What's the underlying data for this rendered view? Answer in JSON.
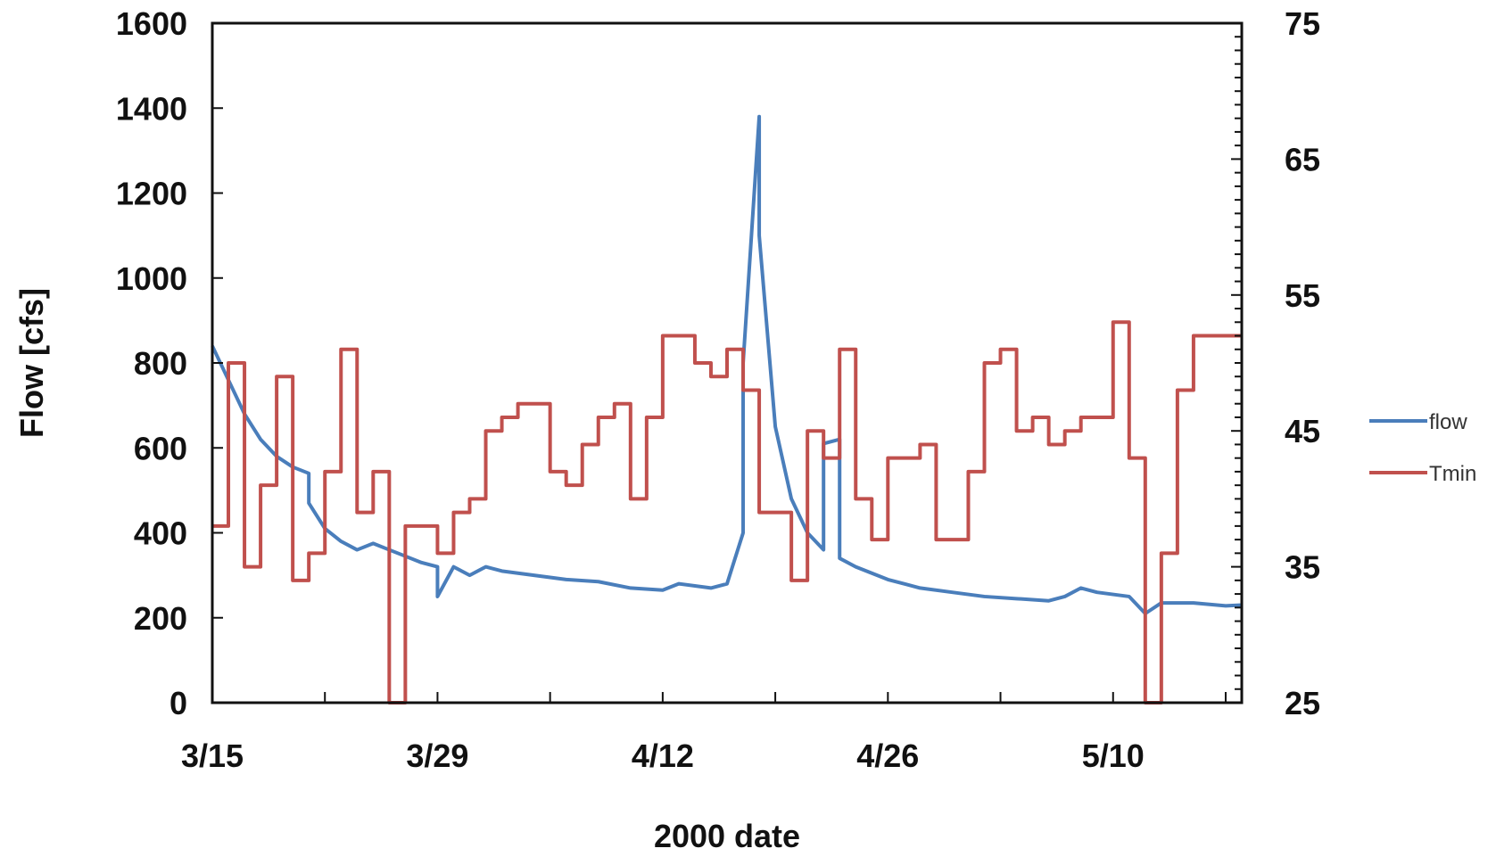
{
  "chart_data": {
    "type": "line",
    "title": "",
    "xlabel": "2000 date",
    "ylabel": "Flow  [cfs]",
    "y2label": "",
    "x_range": [
      "2000-03-15",
      "2000-05-18"
    ],
    "ylim": [
      0,
      1600
    ],
    "y2lim": [
      25,
      75
    ],
    "x_ticks": [
      {
        "date": "2000-03-15",
        "label": "3/15"
      },
      {
        "date": "2000-03-29",
        "label": "3/29"
      },
      {
        "date": "2000-04-12",
        "label": "4/12"
      },
      {
        "date": "2000-04-26",
        "label": "4/26"
      },
      {
        "date": "2000-05-10",
        "label": "5/10"
      }
    ],
    "y_ticks": [
      0,
      200,
      400,
      600,
      800,
      1000,
      1200,
      1400,
      1600
    ],
    "y2_ticks": [
      25,
      35,
      45,
      55,
      65,
      75
    ],
    "grid": false,
    "legend_position": "right",
    "series": [
      {
        "name": "flow",
        "axis": "left",
        "color": "#4a7ebb",
        "style": "line",
        "points": [
          [
            "2000-03-15",
            840
          ],
          [
            "2000-03-16",
            760
          ],
          [
            "2000-03-17",
            680
          ],
          [
            "2000-03-18",
            620
          ],
          [
            "2000-03-19",
            580
          ],
          [
            "2000-03-20",
            555
          ],
          [
            "2000-03-21",
            540
          ],
          [
            "2000-03-21",
            470
          ],
          [
            "2000-03-22",
            410
          ],
          [
            "2000-03-23",
            380
          ],
          [
            "2000-03-24",
            360
          ],
          [
            "2000-03-25",
            375
          ],
          [
            "2000-03-26",
            360
          ],
          [
            "2000-03-27",
            345
          ],
          [
            "2000-03-28",
            330
          ],
          [
            "2000-03-29",
            320
          ],
          [
            "2000-03-29",
            300
          ],
          [
            "2000-03-29",
            250
          ],
          [
            "2000-03-30",
            320
          ],
          [
            "2000-03-31",
            300
          ],
          [
            "2000-04-01",
            320
          ],
          [
            "2000-04-02",
            310
          ],
          [
            "2000-04-04",
            300
          ],
          [
            "2000-04-06",
            290
          ],
          [
            "2000-04-08",
            285
          ],
          [
            "2000-04-10",
            270
          ],
          [
            "2000-04-12",
            265
          ],
          [
            "2000-04-13",
            280
          ],
          [
            "2000-04-15",
            270
          ],
          [
            "2000-04-16",
            280
          ],
          [
            "2000-04-17",
            400
          ],
          [
            "2000-04-17",
            800
          ],
          [
            "2000-04-18",
            1380
          ],
          [
            "2000-04-18",
            1100
          ],
          [
            "2000-04-19",
            650
          ],
          [
            "2000-04-20",
            480
          ],
          [
            "2000-04-21",
            400
          ],
          [
            "2000-04-22",
            360
          ],
          [
            "2000-04-22",
            610
          ],
          [
            "2000-04-23",
            620
          ],
          [
            "2000-04-23",
            340
          ],
          [
            "2000-04-24",
            320
          ],
          [
            "2000-04-26",
            290
          ],
          [
            "2000-04-28",
            270
          ],
          [
            "2000-04-30",
            260
          ],
          [
            "2000-05-02",
            250
          ],
          [
            "2000-05-04",
            245
          ],
          [
            "2000-05-06",
            240
          ],
          [
            "2000-05-07",
            250
          ],
          [
            "2000-05-08",
            270
          ],
          [
            "2000-05-09",
            260
          ],
          [
            "2000-05-11",
            250
          ],
          [
            "2000-05-12",
            210
          ],
          [
            "2000-05-13",
            235
          ],
          [
            "2000-05-15",
            235
          ],
          [
            "2000-05-17",
            228
          ],
          [
            "2000-05-18",
            230
          ]
        ]
      },
      {
        "name": "Tmin",
        "axis": "right",
        "color": "#c0504d",
        "style": "step",
        "points": [
          [
            "2000-03-15",
            38
          ],
          [
            "2000-03-16",
            50
          ],
          [
            "2000-03-17",
            35
          ],
          [
            "2000-03-18",
            41
          ],
          [
            "2000-03-19",
            49
          ],
          [
            "2000-03-20",
            34
          ],
          [
            "2000-03-21",
            36
          ],
          [
            "2000-03-22",
            42
          ],
          [
            "2000-03-23",
            51
          ],
          [
            "2000-03-24",
            39
          ],
          [
            "2000-03-25",
            42
          ],
          [
            "2000-03-26",
            25
          ],
          [
            "2000-03-27",
            38
          ],
          [
            "2000-03-29",
            36
          ],
          [
            "2000-03-30",
            39
          ],
          [
            "2000-03-31",
            40
          ],
          [
            "2000-04-01",
            45
          ],
          [
            "2000-04-02",
            46
          ],
          [
            "2000-04-03",
            47
          ],
          [
            "2000-04-05",
            42
          ],
          [
            "2000-04-06",
            41
          ],
          [
            "2000-04-07",
            44
          ],
          [
            "2000-04-08",
            46
          ],
          [
            "2000-04-09",
            47
          ],
          [
            "2000-04-10",
            40
          ],
          [
            "2000-04-11",
            46
          ],
          [
            "2000-04-12",
            52
          ],
          [
            "2000-04-14",
            50
          ],
          [
            "2000-04-15",
            49
          ],
          [
            "2000-04-16",
            51
          ],
          [
            "2000-04-17",
            48
          ],
          [
            "2000-04-18",
            39
          ],
          [
            "2000-04-20",
            34
          ],
          [
            "2000-04-21",
            45
          ],
          [
            "2000-04-22",
            43
          ],
          [
            "2000-04-23",
            51
          ],
          [
            "2000-04-24",
            40
          ],
          [
            "2000-04-25",
            37
          ],
          [
            "2000-04-26",
            43
          ],
          [
            "2000-04-28",
            44
          ],
          [
            "2000-04-29",
            37
          ],
          [
            "2000-05-01",
            42
          ],
          [
            "2000-05-02",
            50
          ],
          [
            "2000-05-03",
            51
          ],
          [
            "2000-05-04",
            45
          ],
          [
            "2000-05-05",
            46
          ],
          [
            "2000-05-06",
            44
          ],
          [
            "2000-05-07",
            45
          ],
          [
            "2000-05-08",
            46
          ],
          [
            "2000-05-10",
            53
          ],
          [
            "2000-05-11",
            43
          ],
          [
            "2000-05-12",
            25
          ],
          [
            "2000-05-13",
            36
          ],
          [
            "2000-05-14",
            48
          ],
          [
            "2000-05-15",
            52
          ]
        ]
      }
    ]
  }
}
